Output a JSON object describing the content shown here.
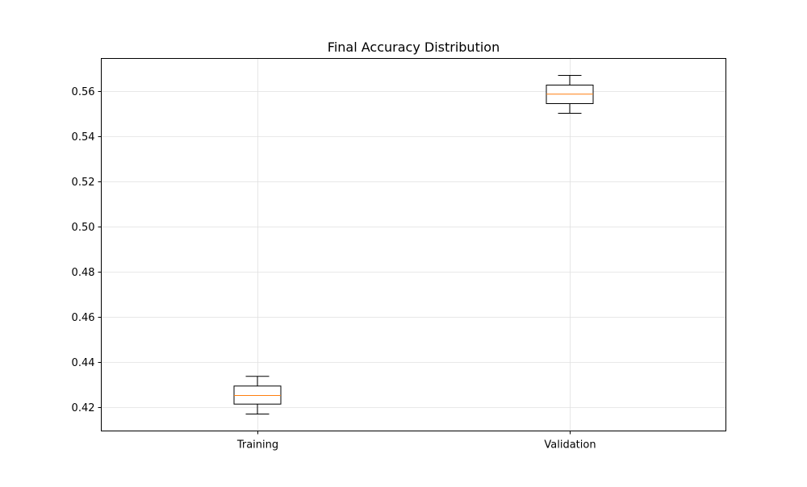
{
  "chart_data": {
    "type": "box",
    "title": "Final Accuracy Distribution",
    "xlabel": "",
    "ylabel": "",
    "categories": [
      "Training",
      "Validation"
    ],
    "boxes": [
      {
        "name": "Training",
        "whislo": 0.4168,
        "q1": 0.4212,
        "median": 0.425,
        "q3": 0.4292,
        "whishi": 0.4335
      },
      {
        "name": "Validation",
        "whislo": 0.55,
        "q1": 0.5543,
        "median": 0.5585,
        "q3": 0.5625,
        "whishi": 0.5668
      }
    ],
    "ylim": [
      0.4093,
      0.5743
    ],
    "yticks": [
      0.42,
      0.44,
      0.46,
      0.48,
      0.5,
      0.52,
      0.54,
      0.56
    ],
    "ytick_labels": [
      "0.42",
      "0.44",
      "0.46",
      "0.48",
      "0.50",
      "0.52",
      "0.54",
      "0.56"
    ],
    "grid": true,
    "colors": {
      "box": "#000000",
      "median": "#ff7f0e",
      "grid": "#e0e0e0"
    }
  }
}
